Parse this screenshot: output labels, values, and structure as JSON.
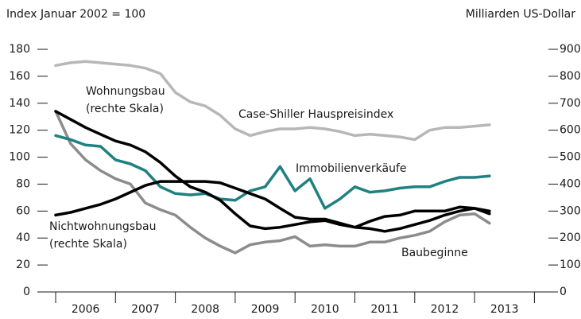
{
  "chart_data": {
    "type": "line",
    "y_axis_title": "Index Januar 2002 = 100",
    "y2_axis_title": "Milliarden US-Dollar",
    "categories": [
      "2006",
      "2007",
      "2008",
      "2009",
      "2010",
      "2011",
      "2012",
      "2013"
    ],
    "x": [
      2006.0,
      2006.25,
      2006.5,
      2006.75,
      2007.0,
      2007.25,
      2007.5,
      2007.75,
      2008.0,
      2008.25,
      2008.5,
      2008.75,
      2009.0,
      2009.25,
      2009.5,
      2009.75,
      2010.0,
      2010.25,
      2010.5,
      2010.75,
      2011.0,
      2011.25,
      2011.5,
      2011.75,
      2012.0,
      2012.25,
      2012.5,
      2012.75,
      2013.0,
      2013.25
    ],
    "xlim": [
      2005.85,
      2014.2
    ],
    "xticks": [
      2006,
      2007,
      2008,
      2009,
      2010,
      2011,
      2012,
      2013,
      2014
    ],
    "ylim": [
      0,
      180
    ],
    "yticks": [
      0,
      20,
      40,
      60,
      80,
      100,
      120,
      140,
      160,
      180
    ],
    "y2lim": [
      0,
      900
    ],
    "y2ticks": [
      0,
      100,
      200,
      300,
      400,
      500,
      600,
      700,
      800,
      900
    ],
    "series": [
      {
        "name": "Case-Shiller Hauspreisindex",
        "color": "#b7b7b7",
        "axis": "y",
        "values": [
          168,
          170,
          171,
          170,
          169,
          168,
          166,
          162,
          148,
          141,
          138,
          131,
          121,
          116,
          119,
          121,
          121,
          122,
          121,
          119,
          116,
          117,
          116,
          115,
          113,
          120,
          122,
          122,
          123,
          124
        ]
      },
      {
        "name": "Baubeginne",
        "color": "#8c8c8c",
        "axis": "y",
        "values": [
          134,
          110,
          98,
          90,
          84,
          80,
          66,
          61,
          57,
          48,
          40,
          34,
          29,
          35,
          37,
          38,
          41,
          34,
          35,
          34,
          34,
          37,
          37,
          40,
          42,
          45,
          52,
          57,
          58,
          51
        ]
      },
      {
        "name": "Immobilienverkäufe",
        "color": "#1f8180",
        "axis": "y",
        "values": [
          116,
          113,
          109,
          108,
          98,
          95,
          90,
          78,
          73,
          72,
          73,
          69,
          68,
          75,
          78,
          93,
          75,
          84,
          62,
          69,
          78,
          74,
          75,
          77,
          78,
          78,
          82,
          85,
          85,
          86
        ]
      },
      {
        "name": "Wohnungsbau",
        "note2": "(rechte Skala)",
        "color": "#000000",
        "axis": "y2",
        "values": [
          670,
          640,
          610,
          585,
          560,
          545,
          520,
          480,
          430,
          390,
          370,
          340,
          290,
          245,
          235,
          240,
          250,
          260,
          265,
          250,
          240,
          235,
          225,
          235,
          250,
          265,
          285,
          300,
          310,
          300
        ]
      },
      {
        "name": "Nichtwohnungsbau",
        "note2": "(rechte Skala)",
        "color": "#000000",
        "axis": "y2",
        "values": [
          285,
          295,
          310,
          325,
          345,
          370,
          395,
          410,
          410,
          410,
          410,
          405,
          385,
          365,
          345,
          310,
          277,
          270,
          270,
          255,
          240,
          262,
          280,
          285,
          300,
          300,
          300,
          315,
          310,
          290
        ]
      }
    ]
  }
}
